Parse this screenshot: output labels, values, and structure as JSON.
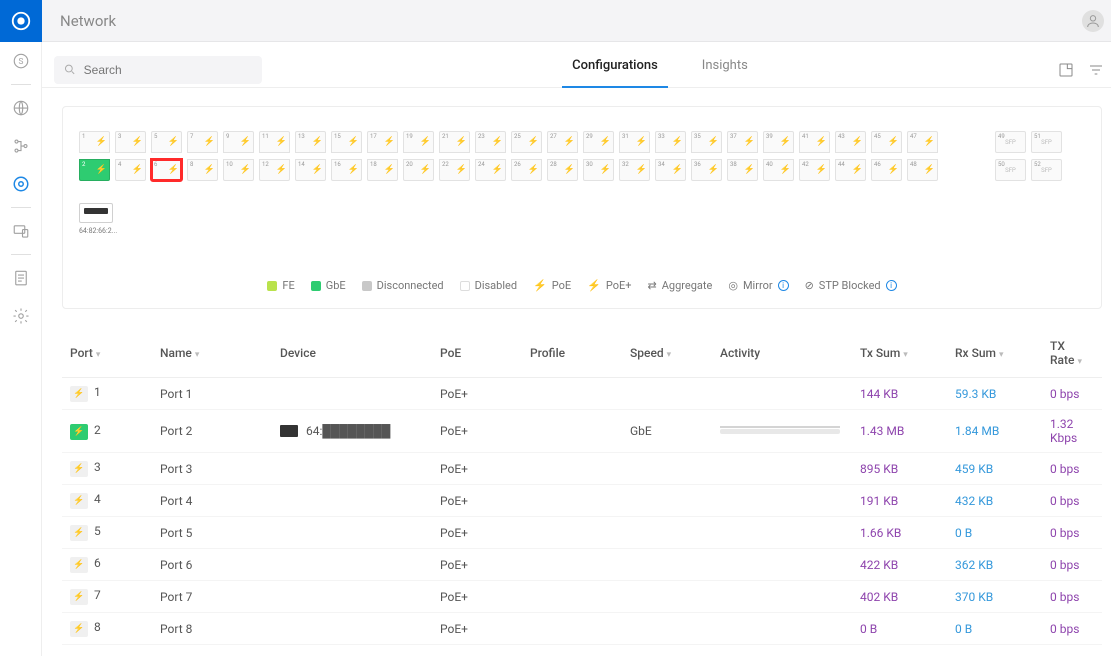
{
  "page": {
    "title": "Network"
  },
  "search": {
    "placeholder": "Search"
  },
  "tabs": {
    "configurations": "Configurations",
    "insights": "Insights"
  },
  "legend": {
    "fe": "FE",
    "gbe": "GbE",
    "disconnected": "Disconnected",
    "disabled": "Disabled",
    "poe": "PoE",
    "poeplus": "PoE+",
    "aggregate": "Aggregate",
    "mirror": "Mirror",
    "stp": "STP Blocked"
  },
  "device": {
    "mac": "64:82:66:2..."
  },
  "sfp": [
    "49",
    "51",
    "50",
    "52"
  ],
  "columns": {
    "port": "Port",
    "name": "Name",
    "device": "Device",
    "poe": "PoE",
    "profile": "Profile",
    "speed": "Speed",
    "activity": "Activity",
    "txsum": "Tx Sum",
    "rxsum": "Rx Sum",
    "txrate": "TX Rate"
  },
  "rows": [
    {
      "n": "1",
      "name": "Port 1",
      "device": "",
      "poe": "PoE+",
      "speed": "",
      "tx": "144 KB",
      "rx": "59.3 KB",
      "rate": "0 bps",
      "on": false,
      "act": false
    },
    {
      "n": "2",
      "name": "Port 2",
      "device": "64:████████",
      "poe": "PoE+",
      "speed": "GbE",
      "tx": "1.43 MB",
      "rx": "1.84 MB",
      "rate": "1.32 Kbps",
      "on": true,
      "act": true
    },
    {
      "n": "3",
      "name": "Port 3",
      "device": "",
      "poe": "PoE+",
      "speed": "",
      "tx": "895 KB",
      "rx": "459 KB",
      "rate": "0 bps",
      "on": false,
      "act": false
    },
    {
      "n": "4",
      "name": "Port 4",
      "device": "",
      "poe": "PoE+",
      "speed": "",
      "tx": "191 KB",
      "rx": "432 KB",
      "rate": "0 bps",
      "on": false,
      "act": false
    },
    {
      "n": "5",
      "name": "Port 5",
      "device": "",
      "poe": "PoE+",
      "speed": "",
      "tx": "1.66 KB",
      "rx": "0 B",
      "rate": "0 bps",
      "on": false,
      "act": false
    },
    {
      "n": "6",
      "name": "Port 6",
      "device": "",
      "poe": "PoE+",
      "speed": "",
      "tx": "422 KB",
      "rx": "362 KB",
      "rate": "0 bps",
      "on": false,
      "act": false
    },
    {
      "n": "7",
      "name": "Port 7",
      "device": "",
      "poe": "PoE+",
      "speed": "",
      "tx": "402 KB",
      "rx": "370 KB",
      "rate": "0 bps",
      "on": false,
      "act": false
    },
    {
      "n": "8",
      "name": "Port 8",
      "device": "",
      "poe": "PoE+",
      "speed": "",
      "tx": "0 B",
      "rx": "0 B",
      "rate": "0 bps",
      "on": false,
      "act": false
    }
  ],
  "ports": {
    "topRow": [
      1,
      3,
      5,
      7,
      9,
      11,
      13,
      15,
      17,
      19,
      21,
      23,
      25,
      27,
      29,
      31,
      33,
      35,
      37,
      39,
      41,
      43,
      45,
      47
    ],
    "bottomRow": [
      2,
      4,
      6,
      8,
      10,
      12,
      14,
      16,
      18,
      20,
      22,
      24,
      26,
      28,
      30,
      32,
      34,
      36,
      38,
      40,
      42,
      44,
      46,
      48
    ],
    "connected": [
      2
    ],
    "highlighted": [
      6
    ]
  }
}
